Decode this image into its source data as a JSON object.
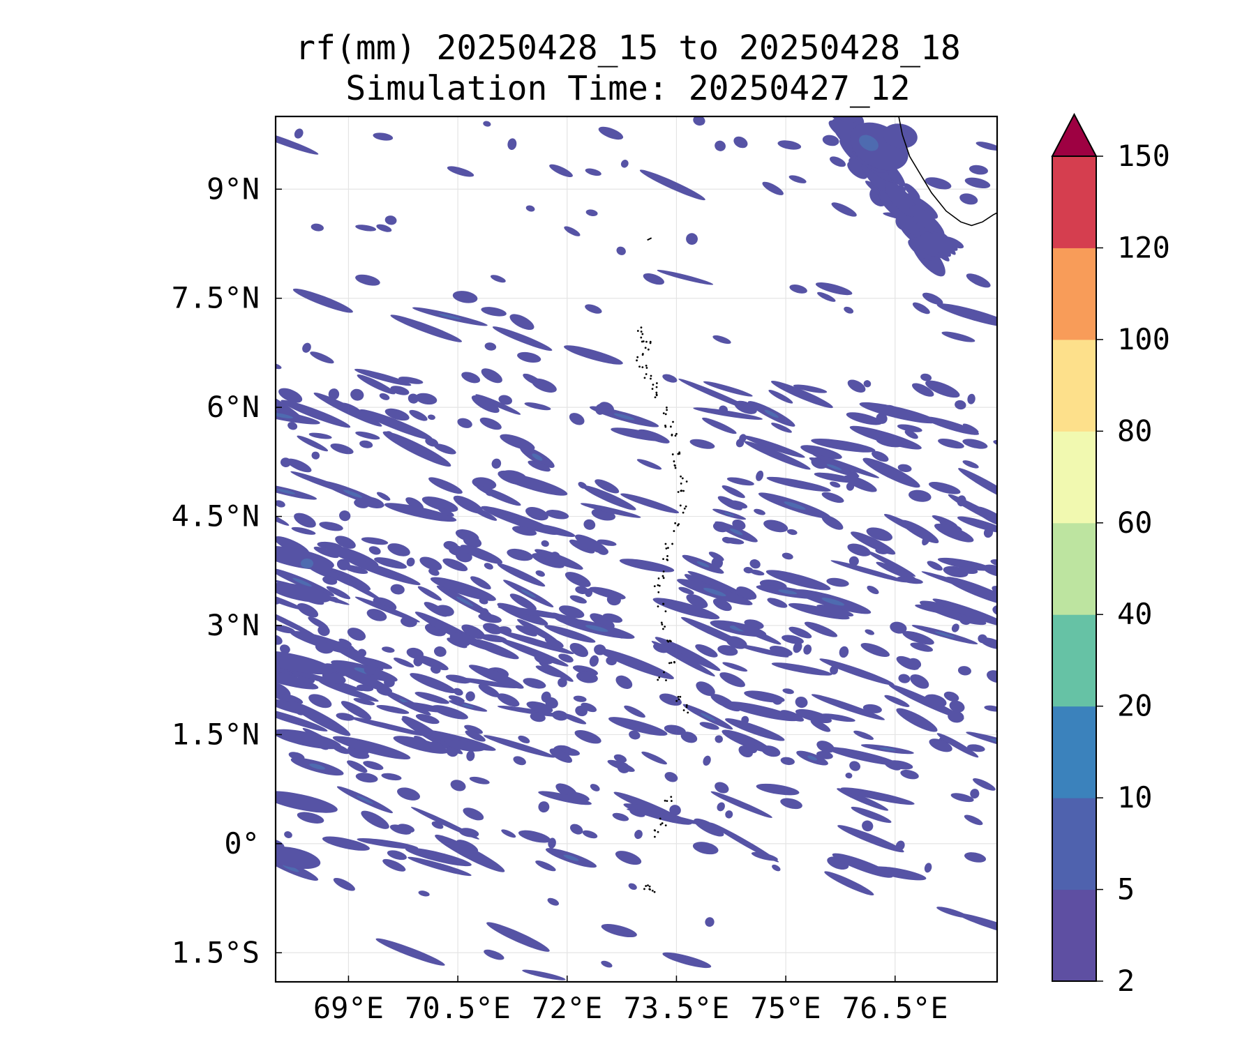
{
  "title_line1": "rf(mm) 20250428_15 to 20250428_18",
  "title_line2": "Simulation Time: 20250427_12",
  "map": {
    "lon_range": [
      68.0,
      77.9
    ],
    "lat_range": [
      -1.9,
      10.0
    ],
    "x_ticks": [
      {
        "value": 69.0,
        "label": "69°E"
      },
      {
        "value": 70.5,
        "label": "70.5°E"
      },
      {
        "value": 72.0,
        "label": "72°E"
      },
      {
        "value": 73.5,
        "label": "73.5°E"
      },
      {
        "value": 75.0,
        "label": "75°E"
      },
      {
        "value": 76.5,
        "label": "76.5°E"
      }
    ],
    "y_ticks": [
      {
        "value": 9.0,
        "label": "9°N"
      },
      {
        "value": 7.5,
        "label": "7.5°N"
      },
      {
        "value": 6.0,
        "label": "6°N"
      },
      {
        "value": 4.5,
        "label": "4.5°N"
      },
      {
        "value": 3.0,
        "label": "3°N"
      },
      {
        "value": 1.5,
        "label": "1.5°N"
      },
      {
        "value": 0.0,
        "label": "0°"
      },
      {
        "value": -1.5,
        "label": "1.5°S"
      }
    ],
    "gridlines": true,
    "field_color": "#5653a5",
    "field_core_color": "#4e6bb0",
    "coastline_color": "#000000"
  },
  "colorbar": {
    "levels": [
      "2",
      "5",
      "10",
      "20",
      "40",
      "60",
      "80",
      "100",
      "120",
      "150"
    ],
    "colors": [
      "#5e4fa2",
      "#4f62ae",
      "#3b82bc",
      "#66c2a5",
      "#bde4a0",
      "#f1f9b0",
      "#fde08b",
      "#f89c59",
      "#d53e4f"
    ],
    "extend_color": "#9e0142",
    "extend": "max"
  }
}
